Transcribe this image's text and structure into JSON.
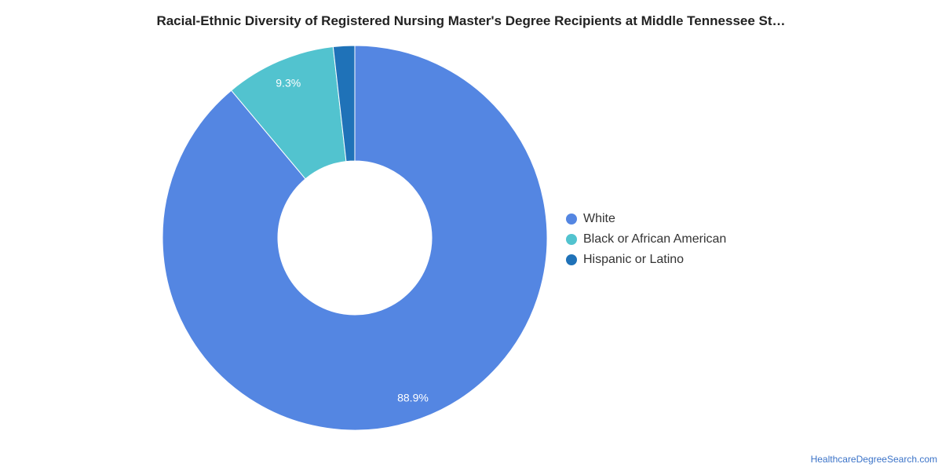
{
  "title": "Racial-Ethnic Diversity of Registered Nursing Master's Degree Recipients at Middle Tennessee St…",
  "chart_data": {
    "type": "pie",
    "donut": true,
    "series": [
      {
        "name": "White",
        "value": 88.9,
        "label": "88.9%",
        "color": "#5486e2"
      },
      {
        "name": "Black or African American",
        "value": 9.3,
        "label": "9.3%",
        "color": "#52c3cf"
      },
      {
        "name": "Hispanic or Latino",
        "value": 1.8,
        "label": "",
        "color": "#1f72b8"
      }
    ],
    "legend_position": "right"
  },
  "legend": [
    {
      "label": "White",
      "color": "#5486e2"
    },
    {
      "label": "Black or African American",
      "color": "#52c3cf"
    },
    {
      "label": "Hispanic or Latino",
      "color": "#1f72b8"
    }
  ],
  "source": "HealthcareDegreeSearch.com"
}
